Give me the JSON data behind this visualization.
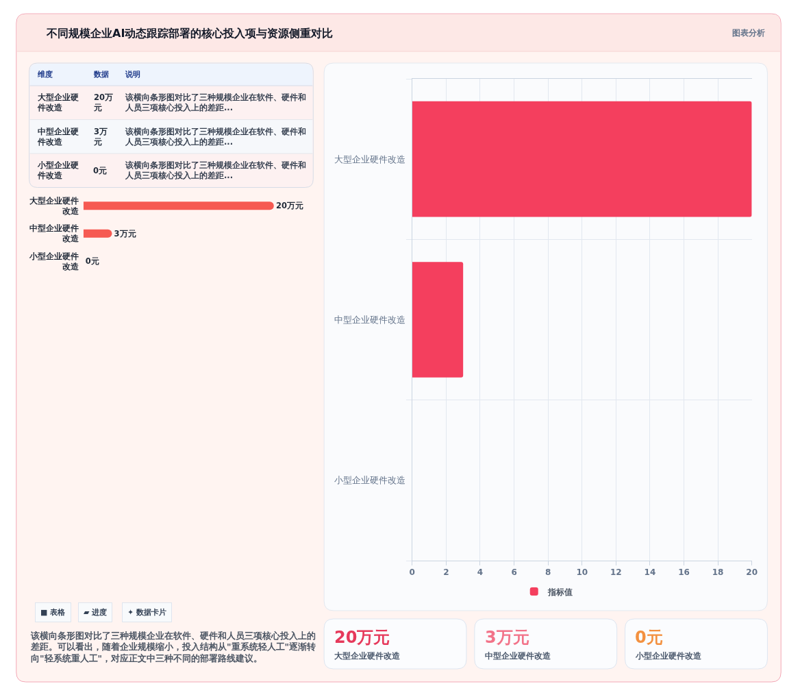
{
  "chart_data": [
    {
      "type": "other",
      "title": "不同规模企业AI动态跟踪部署的核心投入项与资源侧重对比",
      "annotations": [
        "图表分析"
      ]
    },
    {
      "type": "other",
      "annotations": [
        "维度",
        "数据",
        "说明",
        "大型企业硬件改造",
        "20万元",
        "该横向条形图对比了三种规模企业在软件、硬件和人员三项核心投入上的差距...",
        "中型企业硬件改造",
        "3万元",
        "该横向条形图对比了三种规模企业在软件、硬件和人员三项核心投入上的差距...",
        "小型企业硬件改造",
        "0元",
        "该横向条形图对比了三种规模企业在软件、硬件和人员三项核心投入上的差距..."
      ]
    },
    {
      "type": "bar",
      "orientation": "horizontal",
      "categories": [
        "大型企业硬件改造",
        "中型企业硬件改造",
        "小型企业硬件改造"
      ],
      "values": [
        20,
        3,
        0
      ],
      "value_labels": [
        "20万元",
        "3万元",
        "0元"
      ],
      "color": "#f65a52",
      "tick_labels": "y"
    },
    {
      "type": "other",
      "annotations": [
        "■ 表格",
        "▰ 进度",
        "✦ 数据卡片"
      ]
    },
    {
      "type": "other",
      "annotations": [
        "该横向条形图对比了三种规模企业在软件、硬件和人员三项核心投入上的差距。可以看出，随着企业规模缩小，投入结构从\"重系统轻人工\"逐渐转向\"轻系统重人工\"，对应正文中三种不同的部署路线建议。"
      ]
    },
    {
      "type": "bar",
      "orientation": "horizontal",
      "categories": [
        "大型企业硬件改造",
        "中型企业硬件改造",
        "小型企业硬件改造"
      ],
      "series": [
        {
          "name": "指标值",
          "color": "#f43f5e",
          "values": [
            20,
            3,
            0
          ]
        }
      ],
      "xlim": [
        0,
        20
      ],
      "xticks": [
        0,
        2,
        4,
        6,
        8,
        10,
        12,
        14,
        16,
        18,
        20
      ],
      "grid": true,
      "legend": "bottom"
    },
    {
      "type": "other",
      "annotations": [
        "20万元",
        "大型企业硬件改造",
        "3万元",
        "中型企业硬件改造",
        "0元",
        "小型企业硬件改造"
      ],
      "colors": [
        "#e6395b",
        "#f27389",
        "#f39140"
      ]
    }
  ]
}
